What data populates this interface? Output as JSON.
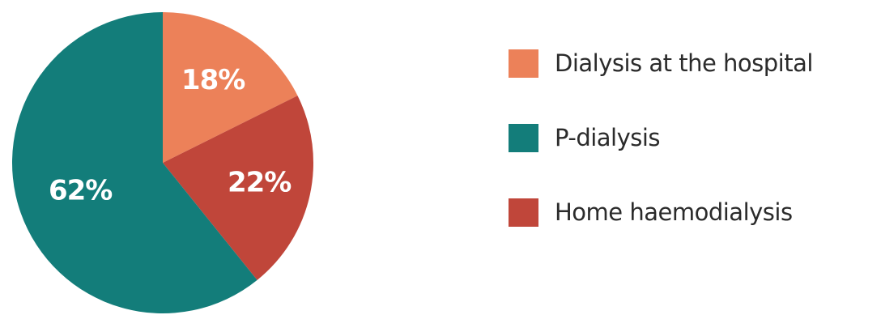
{
  "chart_data": {
    "type": "pie",
    "categories": [
      "Dialysis at the hospital",
      "Home haemodialysis",
      "P-dialysis"
    ],
    "values": [
      18,
      22,
      62
    ],
    "labels": [
      "18%",
      "22%",
      "62%"
    ],
    "colors": [
      "#ec8159",
      "#c0463a",
      "#137d7a"
    ],
    "legend_position": "right",
    "legend": [
      {
        "label": "Dialysis at the hospital",
        "color": "#ec8159"
      },
      {
        "label": "P-dialysis",
        "color": "#137d7a"
      },
      {
        "label": "Home haemodialysis",
        "color": "#c0463a"
      }
    ]
  }
}
